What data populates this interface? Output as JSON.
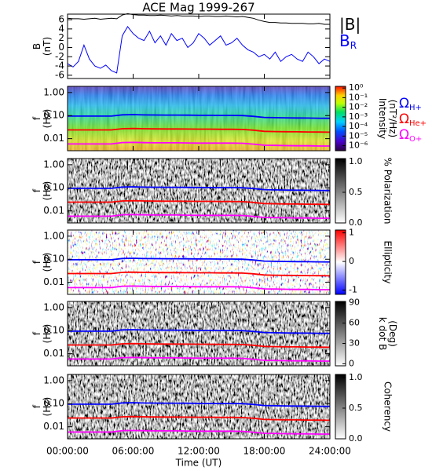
{
  "chart_data": [
    {
      "type": "line",
      "title": "ACE Mag 1999-267",
      "ylabel": [
        "B",
        "(nT)"
      ],
      "x": [
        0,
        0.5,
        1,
        1.5,
        2,
        2.5,
        3,
        3.5,
        4,
        4.5,
        5,
        5.5,
        6,
        6.5,
        7,
        7.5,
        8,
        8.5,
        9,
        9.5,
        10,
        10.5,
        11,
        11.5,
        12,
        12.5,
        13,
        13.5,
        14,
        14.5,
        15,
        15.5,
        16,
        16.5,
        17,
        17.5,
        18,
        18.5,
        19,
        19.5,
        20,
        20.5,
        21,
        21.5,
        22,
        22.5,
        23,
        23.5,
        24
      ],
      "xlim": [
        0,
        24
      ],
      "ylim": [
        -6.7,
        7.2
      ],
      "yticks": [
        6,
        4,
        2,
        0,
        -2,
        -4,
        -6
      ],
      "series": [
        {
          "name": "|B|",
          "color": "#000000",
          "values": [
            6.3,
            6.2,
            6.2,
            6.1,
            6.2,
            6.3,
            6.1,
            6.2,
            6.3,
            6.2,
            7.0,
            7.3,
            7.1,
            7.0,
            7.0,
            6.9,
            6.9,
            7.0,
            6.9,
            6.8,
            6.9,
            6.8,
            6.8,
            6.8,
            6.7,
            6.8,
            6.8,
            6.7,
            6.7,
            6.8,
            6.7,
            6.6,
            6.7,
            6.5,
            6.3,
            5.9,
            5.6,
            5.4,
            5.4,
            5.3,
            5.3,
            5.2,
            5.2,
            5.2,
            5.1,
            5.1,
            5.2,
            5.0,
            5.0
          ]
        },
        {
          "name": "B",
          "subscript": "R",
          "color": "#0000ff",
          "values": [
            -3.5,
            -4.2,
            -3.0,
            0.5,
            -2.5,
            -4.0,
            -4.5,
            -3.8,
            -5.0,
            -5.5,
            2.5,
            4.5,
            3.0,
            2.0,
            1.5,
            3.5,
            1.0,
            2.5,
            0.5,
            3.0,
            1.5,
            2.0,
            0.0,
            1.0,
            3.0,
            2.0,
            0.5,
            1.5,
            2.5,
            0.5,
            1.0,
            2.0,
            0.5,
            -0.5,
            -1.0,
            -2.0,
            -1.5,
            -2.5,
            -1.0,
            -3.0,
            -2.0,
            -1.5,
            -2.5,
            -3.0,
            -1.0,
            -2.0,
            -3.5,
            -2.5,
            -3.0
          ]
        }
      ]
    },
    {
      "type": "spectrogram",
      "ylabel": [
        "f",
        "(Hz)"
      ],
      "log_y": true,
      "xlim": [
        0,
        24
      ],
      "ylim": [
        0.003,
        1.85
      ],
      "yticks": [
        {
          "value": 1,
          "label": "1.00"
        },
        {
          "value": 0.1,
          "label": "0.10"
        },
        {
          "value": 0.01,
          "label": "0.01"
        }
      ],
      "x": [
        0,
        1,
        2,
        3,
        4,
        5,
        6,
        7,
        8,
        9,
        10,
        11,
        12,
        13,
        14,
        15,
        16,
        17,
        18,
        19,
        20,
        21,
        22,
        23,
        24
      ],
      "series": [
        {
          "name": "Ω",
          "subscript": "H+",
          "color": "#0000ff",
          "values": [
            0.095,
            0.095,
            0.095,
            0.095,
            0.095,
            0.108,
            0.11,
            0.107,
            0.106,
            0.105,
            0.105,
            0.104,
            0.103,
            0.103,
            0.102,
            0.102,
            0.1,
            0.093,
            0.083,
            0.081,
            0.08,
            0.079,
            0.078,
            0.077,
            0.076
          ]
        },
        {
          "name": "Ω",
          "subscript": "He+",
          "color": "#ff0000",
          "values": [
            0.024,
            0.024,
            0.024,
            0.024,
            0.024,
            0.027,
            0.0275,
            0.0268,
            0.0265,
            0.0263,
            0.0263,
            0.026,
            0.0258,
            0.0258,
            0.0255,
            0.0255,
            0.025,
            0.0233,
            0.0208,
            0.0203,
            0.02,
            0.0198,
            0.0195,
            0.0193,
            0.019
          ]
        },
        {
          "name": "Ω",
          "subscript": "O+",
          "color": "#ff00ff",
          "values": [
            0.0059,
            0.0059,
            0.0059,
            0.0059,
            0.0059,
            0.0068,
            0.0069,
            0.0067,
            0.0066,
            0.0066,
            0.0066,
            0.0065,
            0.0064,
            0.0064,
            0.0064,
            0.0064,
            0.0063,
            0.0058,
            0.0052,
            0.0051,
            0.005,
            0.0049,
            0.0049,
            0.0048,
            0.0048
          ]
        }
      ],
      "colorbar": {
        "label": [
          "Intensity",
          "(nT²/Hz)"
        ],
        "colormap": "rainbow",
        "log": true,
        "lim": [
          3e-07,
          1.5
        ],
        "ticks": [
          {
            "value": 1,
            "label": "10⁰"
          },
          {
            "value": 0.1,
            "label": "10⁻¹"
          },
          {
            "value": 0.01,
            "label": "10⁻²"
          },
          {
            "value": 0.001,
            "label": "10⁻³"
          },
          {
            "value": 0.0001,
            "label": "10⁻⁴"
          },
          {
            "value": 1e-05,
            "label": "10⁻⁵"
          },
          {
            "value": 1e-06,
            "label": "10⁻⁶"
          }
        ]
      }
    },
    {
      "type": "spectrogram",
      "ylabel": [
        "f",
        "(Hz)"
      ],
      "log_y": true,
      "xlim": [
        0,
        24
      ],
      "ylim": [
        0.003,
        1.85
      ],
      "yticks": [
        {
          "value": 1,
          "label": "1.00"
        },
        {
          "value": 0.1,
          "label": "0.10"
        },
        {
          "value": 0.01,
          "label": "0.01"
        }
      ],
      "colorbar": {
        "label": [
          "% Polarization"
        ],
        "colormap": "gray",
        "lim": [
          0,
          1.05
        ],
        "ticks": [
          {
            "value": 1,
            "label": "1.0"
          },
          {
            "value": 0.5,
            "label": "0.5"
          },
          {
            "value": 0,
            "label": "0.0"
          }
        ]
      }
    },
    {
      "type": "spectrogram",
      "ylabel": [
        "f",
        "(Hz)"
      ],
      "log_y": true,
      "xlim": [
        0,
        24
      ],
      "ylim": [
        0.003,
        1.85
      ],
      "yticks": [
        {
          "value": 1,
          "label": "1.00"
        },
        {
          "value": 0.1,
          "label": "0.10"
        },
        {
          "value": 0.01,
          "label": "0.01"
        }
      ],
      "colorbar": {
        "label": [
          "Ellipticity"
        ],
        "colormap": "bwr",
        "lim": [
          -1.15,
          1.1
        ],
        "ticks": [
          1,
          0,
          -1
        ]
      }
    },
    {
      "type": "spectrogram",
      "ylabel": [
        "f",
        "(Hz)"
      ],
      "log_y": true,
      "xlim": [
        0,
        24
      ],
      "ylim": [
        0.003,
        1.85
      ],
      "yticks": [
        {
          "value": 1,
          "label": "1.00"
        },
        {
          "value": 0.1,
          "label": "0.10"
        },
        {
          "value": 0.01,
          "label": "0.01"
        }
      ],
      "colorbar": {
        "label": [
          "k dot B",
          "(Deg)"
        ],
        "colormap": "gray",
        "lim": [
          -3,
          92
        ],
        "ticks": [
          90,
          60,
          30,
          0
        ]
      }
    },
    {
      "type": "spectrogram",
      "ylabel": [
        "f",
        "(Hz)"
      ],
      "log_y": true,
      "xlim": [
        0,
        24
      ],
      "ylim": [
        0.003,
        1.85
      ],
      "yticks": [
        {
          "value": 1,
          "label": "1.00"
        },
        {
          "value": 0.1,
          "label": "0.10"
        },
        {
          "value": 0.01,
          "label": "0.01"
        }
      ],
      "xlabel": "Time (UT)",
      "xticks": [
        {
          "value": 0,
          "label": "00:00:00"
        },
        {
          "value": 6,
          "label": "06:00:00"
        },
        {
          "value": 12,
          "label": "12:00:00"
        },
        {
          "value": 18,
          "label": "18:00:00"
        },
        {
          "value": 24,
          "label": "24:00:00"
        }
      ],
      "colorbar": {
        "label": [
          "Coherency"
        ],
        "colormap": "gray",
        "lim": [
          0,
          1.05
        ],
        "ticks": [
          {
            "value": 1,
            "label": "1.0"
          },
          {
            "value": 0.5,
            "label": "0.5"
          },
          {
            "value": 0,
            "label": "0.0"
          }
        ]
      }
    }
  ]
}
